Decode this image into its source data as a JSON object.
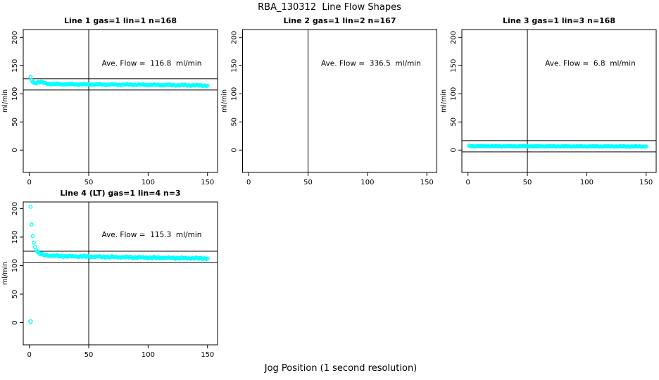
{
  "page": {
    "title": "RBA_130312  Line Flow Shapes",
    "xlabel": "Jog Position (1 second resolution)"
  },
  "colors": {
    "points": "#00FFFF",
    "axis": "#000000",
    "background": "#FFFFFF"
  },
  "chart_data": [
    {
      "type": "scatter",
      "title": "Line 1 gas=1 lin=1 n=168",
      "annotation": "Ave. Flow =  116.8  ml/min",
      "ave_flow_ml_min": 116.8,
      "n": 168,
      "ylabel": "ml/min",
      "xticks": [
        0,
        50,
        100,
        150
      ],
      "yticks": [
        0,
        50,
        100,
        150,
        200
      ],
      "xlim": [
        0,
        150
      ],
      "ylim": [
        0,
        200
      ],
      "vline_x": 50,
      "hlines": [
        126.8,
        106.8
      ],
      "series_anchors": [
        [
          1,
          129
        ],
        [
          2,
          124
        ],
        [
          3,
          121
        ],
        [
          4,
          119
        ],
        [
          6,
          120
        ],
        [
          9,
          121
        ],
        [
          13,
          119
        ],
        [
          18,
          117.5
        ],
        [
          30,
          117
        ],
        [
          60,
          116.5
        ],
        [
          100,
          116
        ],
        [
          150,
          114.8
        ]
      ],
      "extra_points": []
    },
    {
      "type": "scatter",
      "title": "Line 2 gas=1 lin=2 n=167",
      "annotation": "Ave. Flow =  336.5  ml/min",
      "ave_flow_ml_min": 336.5,
      "n": 167,
      "ylabel": "ml/min",
      "xticks": [
        0,
        50,
        100,
        150
      ],
      "yticks": [
        0,
        50,
        100,
        150,
        200
      ],
      "xlim": [
        0,
        150
      ],
      "ylim": [
        0,
        200
      ],
      "vline_x": 50,
      "hlines": [],
      "series_anchors": [],
      "extra_points": []
    },
    {
      "type": "scatter",
      "title": "Line 3 gas=1 lin=3 n=168",
      "annotation": "Ave. Flow =  6.8  ml/min",
      "ave_flow_ml_min": 6.8,
      "n": 168,
      "ylabel": "ml/min",
      "xticks": [
        0,
        50,
        100,
        150
      ],
      "yticks": [
        0,
        50,
        100,
        150,
        200
      ],
      "xlim": [
        0,
        150
      ],
      "ylim": [
        0,
        200
      ],
      "vline_x": 50,
      "hlines": [
        16.8,
        -3.2
      ],
      "series_anchors": [
        [
          1,
          7.5
        ],
        [
          5,
          7
        ],
        [
          60,
          6.8
        ],
        [
          150,
          6.5
        ]
      ],
      "extra_points": []
    },
    {
      "type": "scatter",
      "title": "Line 4 (LT) gas=1 lin=4 n=3",
      "annotation": "Ave. Flow =  115.3  ml/min",
      "ave_flow_ml_min": 115.3,
      "n": 3,
      "ylabel": "ml/min",
      "xticks": [
        0,
        50,
        100,
        150
      ],
      "yticks": [
        0,
        50,
        100,
        150,
        200
      ],
      "xlim": [
        0,
        150
      ],
      "ylim": [
        0,
        200
      ],
      "vline_x": 50,
      "hlines": [
        125.3,
        105.3
      ],
      "series_anchors": [
        [
          1,
          203
        ],
        [
          2,
          170
        ],
        [
          3,
          149
        ],
        [
          4,
          138
        ],
        [
          5,
          131
        ],
        [
          6,
          127
        ],
        [
          7,
          124
        ],
        [
          8,
          122
        ],
        [
          10,
          120
        ],
        [
          13,
          118.5
        ],
        [
          18,
          117.5
        ],
        [
          30,
          116.5
        ],
        [
          60,
          115.5
        ],
        [
          100,
          114
        ],
        [
          130,
          113
        ],
        [
          150,
          112.5
        ]
      ],
      "extra_points": [
        [
          1,
          2
        ]
      ]
    }
  ]
}
